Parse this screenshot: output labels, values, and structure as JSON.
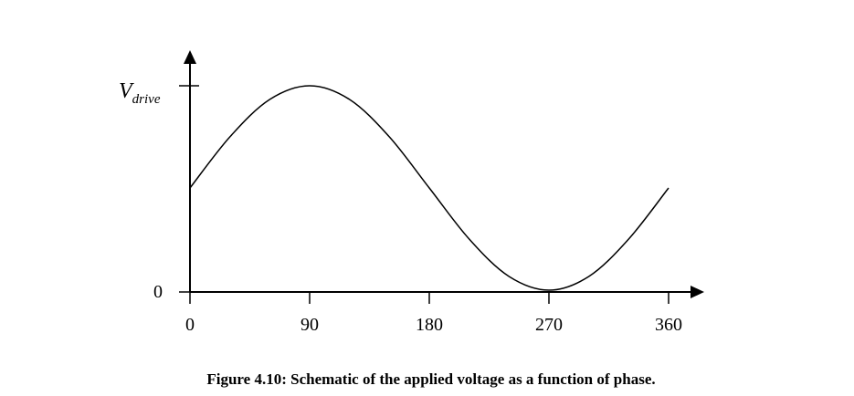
{
  "chart_data": {
    "type": "line",
    "xlabel": "",
    "ylabel": "",
    "x_ticks": [
      "0",
      "90",
      "180",
      "270",
      "360"
    ],
    "y_ticks": [
      {
        "value": 0,
        "label": "0"
      },
      {
        "value": 1,
        "label_main": "V",
        "label_sub": "drive"
      }
    ],
    "xlim": [
      0,
      360
    ],
    "ylim": [
      0,
      1
    ],
    "grid": false,
    "series": [
      {
        "x": [
          0,
          30,
          60,
          90,
          120,
          150,
          180,
          210,
          240,
          270,
          300,
          330,
          360
        ],
        "values": [
          0.5,
          0.75,
          0.933,
          1.0,
          0.933,
          0.75,
          0.5,
          0.25,
          0.067,
          0.0,
          0.067,
          0.25,
          0.5
        ]
      }
    ]
  },
  "caption": "Figure 4.10: Schematic of the applied voltage as a function of phase."
}
